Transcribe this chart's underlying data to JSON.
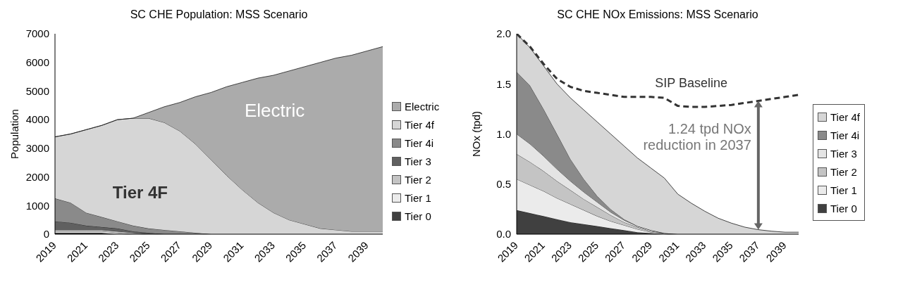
{
  "chart_data": [
    {
      "type": "area",
      "title": "SC CHE Population: MSS Scenario",
      "ylabel": "Population",
      "stacked": true,
      "legend": "right",
      "grid": false,
      "x": [
        2019,
        2020,
        2021,
        2022,
        2023,
        2024,
        2025,
        2026,
        2027,
        2028,
        2029,
        2030,
        2031,
        2032,
        2033,
        2034,
        2035,
        2036,
        2037,
        2038,
        2039,
        2040
      ],
      "xlim": [
        2019,
        2040
      ],
      "xticks": [
        2019,
        2021,
        2023,
        2025,
        2027,
        2029,
        2031,
        2033,
        2035,
        2037,
        2039
      ],
      "ylim": [
        0,
        7000
      ],
      "yticks": [
        0,
        1000,
        2000,
        3000,
        4000,
        5000,
        6000,
        7000
      ],
      "annotations": [
        "Electric",
        "Tier 4F"
      ],
      "series": [
        {
          "name": "Tier 0",
          "color": "#404040",
          "values": [
            50,
            50,
            50,
            50,
            0,
            0,
            0,
            0,
            0,
            0,
            0,
            0,
            0,
            0,
            0,
            0,
            0,
            0,
            0,
            0,
            0,
            0
          ]
        },
        {
          "name": "Tier 1",
          "color": "#ebebeb",
          "values": [
            50,
            50,
            50,
            50,
            50,
            0,
            0,
            0,
            0,
            0,
            0,
            0,
            0,
            0,
            0,
            0,
            0,
            0,
            0,
            0,
            0,
            0
          ]
        },
        {
          "name": "Tier 2",
          "color": "#c4c4c4",
          "values": [
            50,
            50,
            50,
            50,
            50,
            50,
            0,
            0,
            0,
            0,
            0,
            0,
            0,
            0,
            0,
            0,
            0,
            0,
            0,
            0,
            0,
            0
          ]
        },
        {
          "name": "Tier 3",
          "color": "#606060",
          "values": [
            300,
            250,
            150,
            100,
            100,
            50,
            50,
            0,
            0,
            0,
            0,
            0,
            0,
            0,
            0,
            0,
            0,
            0,
            0,
            0,
            0,
            0
          ]
        },
        {
          "name": "Tier 4i",
          "color": "#8a8a8a",
          "values": [
            800,
            700,
            450,
            350,
            250,
            200,
            150,
            150,
            100,
            50,
            0,
            0,
            0,
            0,
            0,
            0,
            0,
            0,
            0,
            0,
            0,
            0
          ]
        },
        {
          "name": "Tier 4f",
          "color": "#d6d6d6",
          "values": [
            2150,
            2400,
            2900,
            3200,
            3550,
            3750,
            3850,
            3750,
            3500,
            3100,
            2600,
            2050,
            1550,
            1100,
            750,
            500,
            350,
            200,
            150,
            100,
            100,
            100
          ]
        },
        {
          "name": "Electric",
          "color": "#ababab",
          "values": [
            0,
            0,
            0,
            0,
            0,
            0,
            200,
            550,
            1000,
            1650,
            2350,
            3100,
            3750,
            4350,
            4800,
            5200,
            5500,
            5800,
            6000,
            6150,
            6300,
            6450
          ]
        }
      ]
    },
    {
      "type": "area",
      "title": "SC CHE NOx Emissions: MSS Scenario",
      "ylabel": "NOx (tpd)",
      "stacked": true,
      "legend": "right",
      "grid": false,
      "x": [
        2019,
        2020,
        2021,
        2022,
        2023,
        2024,
        2025,
        2026,
        2027,
        2028,
        2029,
        2030,
        2031,
        2032,
        2033,
        2034,
        2035,
        2036,
        2037,
        2038,
        2039,
        2040
      ],
      "xlim": [
        2019,
        2040
      ],
      "xticks": [
        2019,
        2021,
        2023,
        2025,
        2027,
        2029,
        2031,
        2033,
        2035,
        2037,
        2039
      ],
      "ylim": [
        0,
        2
      ],
      "yticks": [
        {
          "value": 0,
          "label": "0.0"
        },
        0.5,
        {
          "value": 1,
          "label": "1.0"
        },
        1.5,
        {
          "value": 2,
          "label": "2.0"
        }
      ],
      "annotations": [
        "1.24 tpd NOx reduction in 2037"
      ],
      "series": [
        {
          "name": "Tier 0",
          "color": "#404040",
          "values": [
            0.24,
            0.21,
            0.18,
            0.15,
            0.12,
            0.1,
            0.08,
            0.06,
            0.04,
            0.02,
            0.01,
            0,
            0,
            0,
            0,
            0,
            0,
            0,
            0,
            0,
            0,
            0
          ]
        },
        {
          "name": "Tier 1",
          "color": "#ebebeb",
          "values": [
            0.31,
            0.28,
            0.25,
            0.21,
            0.18,
            0.14,
            0.1,
            0.07,
            0.05,
            0.03,
            0.01,
            0.01,
            0,
            0,
            0,
            0,
            0,
            0,
            0,
            0,
            0,
            0
          ]
        },
        {
          "name": "Tier 2",
          "color": "#c4c4c4",
          "values": [
            0.25,
            0.23,
            0.2,
            0.17,
            0.14,
            0.11,
            0.09,
            0.06,
            0.03,
            0.02,
            0.01,
            0,
            0,
            0,
            0,
            0,
            0,
            0,
            0,
            0,
            0,
            0
          ]
        },
        {
          "name": "Tier 3",
          "color": "#e4e4e4",
          "values": [
            0.2,
            0.18,
            0.15,
            0.12,
            0.09,
            0.07,
            0.05,
            0.03,
            0.02,
            0.01,
            0.01,
            0,
            0,
            0,
            0,
            0,
            0,
            0,
            0,
            0,
            0,
            0
          ]
        },
        {
          "name": "Tier 4i",
          "color": "#8a8a8a",
          "values": [
            0.62,
            0.58,
            0.47,
            0.35,
            0.22,
            0.13,
            0.06,
            0.03,
            0.01,
            0,
            0,
            0,
            0,
            0,
            0,
            0,
            0,
            0,
            0,
            0,
            0,
            0
          ]
        },
        {
          "name": "Tier 4f",
          "color": "#d6d6d6",
          "values": [
            0.38,
            0.38,
            0.43,
            0.5,
            0.61,
            0.69,
            0.74,
            0.75,
            0.73,
            0.68,
            0.62,
            0.55,
            0.4,
            0.31,
            0.23,
            0.16,
            0.11,
            0.07,
            0.045,
            0.03,
            0.02,
            0.02
          ]
        },
        {
          "name": "SIP Baseline",
          "type": "line",
          "line_style": "dashed",
          "color": "#333333",
          "values": [
            2.0,
            1.87,
            1.7,
            1.55,
            1.47,
            1.43,
            1.41,
            1.39,
            1.37,
            1.37,
            1.37,
            1.36,
            1.28,
            1.27,
            1.27,
            1.28,
            1.29,
            1.31,
            1.33,
            1.35,
            1.37,
            1.39
          ]
        }
      ]
    }
  ]
}
